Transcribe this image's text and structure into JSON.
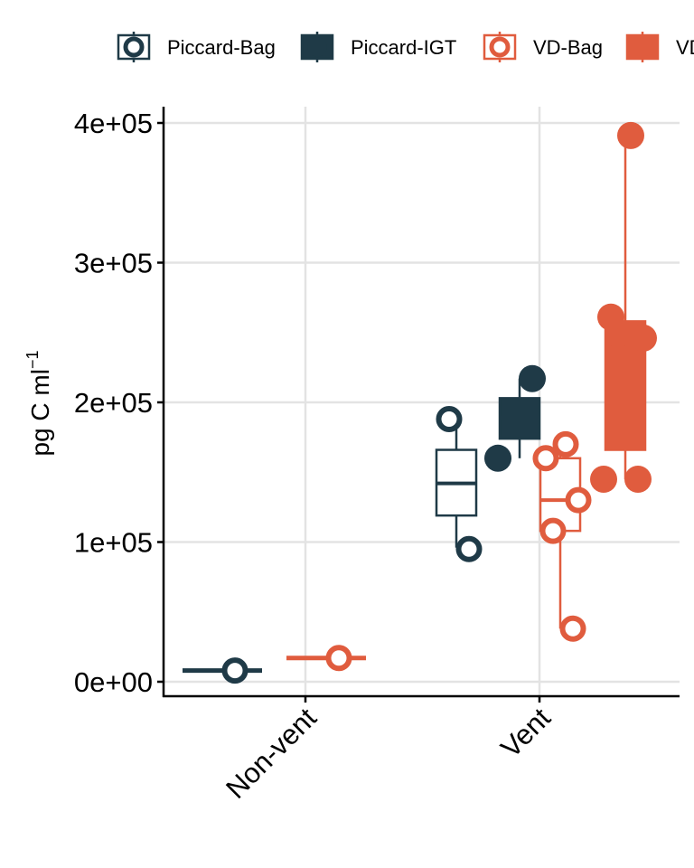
{
  "chart_data": {
    "type": "box+scatter",
    "categories": [
      "Non-vent",
      "Vent"
    ],
    "ylabel": {
      "main": "pg C  ml",
      "superscript": "−1"
    },
    "ylim": [
      -10000,
      410000
    ],
    "yticks": [
      {
        "value": 0,
        "label": "0e+00"
      },
      {
        "value": 100000,
        "label": "1e+05"
      },
      {
        "value": 200000,
        "label": "2e+05"
      },
      {
        "value": 300000,
        "label": "3e+05"
      },
      {
        "value": 400000,
        "label": "4e+05"
      }
    ],
    "grid": true,
    "legend_position": "top",
    "series": [
      {
        "name": "Piccard-Bag",
        "color": "#1f3a47",
        "style": "open",
        "boxes": [
          {
            "category": "Non-vent",
            "min": 8000,
            "q1": 8000,
            "median": 8000,
            "q3": 8000,
            "max": 8000
          },
          {
            "category": "Vent",
            "min": 96000,
            "q1": 119000,
            "median": 142000,
            "q3": 166000,
            "max": 189000
          }
        ],
        "points": [
          {
            "category": "Non-vent",
            "value": 8000
          },
          {
            "category": "Vent",
            "value": 95000
          },
          {
            "category": "Vent",
            "value": 188000
          }
        ]
      },
      {
        "name": "Piccard-IGT",
        "color": "#1f3a47",
        "style": "filled",
        "boxes": [
          {
            "category": "Vent",
            "min": 160000,
            "q1": 174000,
            "median": 189000,
            "q3": 203000,
            "max": 217000
          }
        ],
        "points": [
          {
            "category": "Vent",
            "value": 160000
          },
          {
            "category": "Vent",
            "value": 217000
          }
        ]
      },
      {
        "name": "VD-Bag",
        "color": "#e05c3e",
        "style": "open",
        "boxes": [
          {
            "category": "Non-vent",
            "min": 17000,
            "q1": 17000,
            "median": 17000,
            "q3": 17000,
            "max": 17000
          },
          {
            "category": "Vent",
            "min": 38000,
            "q1": 108000,
            "median": 130000,
            "q3": 160000,
            "max": 170000
          }
        ],
        "points": [
          {
            "category": "Non-vent",
            "value": 17000
          },
          {
            "category": "Vent",
            "value": 38000
          },
          {
            "category": "Vent",
            "value": 108000
          },
          {
            "category": "Vent",
            "value": 130000
          },
          {
            "category": "Vent",
            "value": 160000
          },
          {
            "category": "Vent",
            "value": 170000
          }
        ]
      },
      {
        "name": "VD-IGT",
        "color": "#e05c3e",
        "style": "filled",
        "boxes": [
          {
            "category": "Vent",
            "min": 145000,
            "q1": 166000,
            "median": 232000,
            "q3": 258000,
            "max": 391000
          }
        ],
        "points": [
          {
            "category": "Vent",
            "value": 145000
          },
          {
            "category": "Vent",
            "value": 145000
          },
          {
            "category": "Vent",
            "value": 232000
          },
          {
            "category": "Vent",
            "value": 246000
          },
          {
            "category": "Vent",
            "value": 261000
          },
          {
            "category": "Vent",
            "value": 391000
          }
        ]
      }
    ]
  }
}
